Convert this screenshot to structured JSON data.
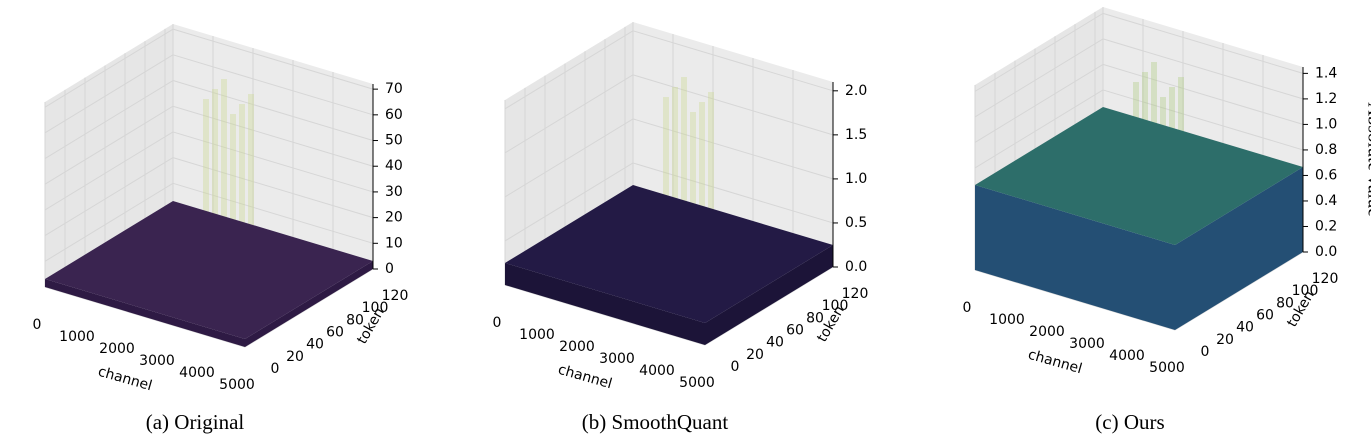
{
  "chart_data": [
    {
      "type": "surface3d",
      "caption": "(a) Original",
      "xlabel": "channel",
      "ylabel": "token",
      "xlim": [
        0,
        5000
      ],
      "xticks": [
        0,
        1000,
        2000,
        3000,
        4000,
        5000
      ],
      "ylim": [
        0,
        128
      ],
      "yticks": [
        0,
        20,
        40,
        60,
        80,
        100,
        120
      ],
      "zlim": [
        0,
        72
      ],
      "zticks": [
        0,
        10,
        20,
        30,
        40,
        50,
        60,
        70
      ]
    },
    {
      "type": "surface3d",
      "caption": "(b) SmoothQuant",
      "xlabel": "channel",
      "ylabel": "token",
      "xlim": [
        0,
        5000
      ],
      "xticks": [
        0,
        1000,
        2000,
        3000,
        4000,
        5000
      ],
      "ylim": [
        0,
        128
      ],
      "yticks": [
        0,
        20,
        40,
        60,
        80,
        100,
        120
      ],
      "zlim": [
        0,
        2.1
      ],
      "zticks": [
        {
          "value": 0,
          "label": "0.0"
        },
        0.5,
        {
          "value": 1,
          "label": "1.0"
        },
        1.5,
        {
          "value": 2,
          "label": "2.0"
        }
      ]
    },
    {
      "type": "surface3d",
      "caption": "(c) Ours",
      "xlabel": "channel",
      "ylabel": "token",
      "zlabel": "Absolute value",
      "xlim": [
        0,
        5000
      ],
      "xticks": [
        0,
        1000,
        2000,
        3000,
        4000,
        5000
      ],
      "ylim": [
        0,
        128
      ],
      "yticks": [
        0,
        20,
        40,
        60,
        80,
        100,
        120
      ],
      "zlim": [
        0,
        1.45
      ],
      "zticks": [
        {
          "value": 0,
          "label": "0.0"
        },
        0.2,
        0.4,
        0.6,
        0.8,
        {
          "value": 1,
          "label": "1.0"
        },
        1.2,
        1.4
      ]
    }
  ]
}
